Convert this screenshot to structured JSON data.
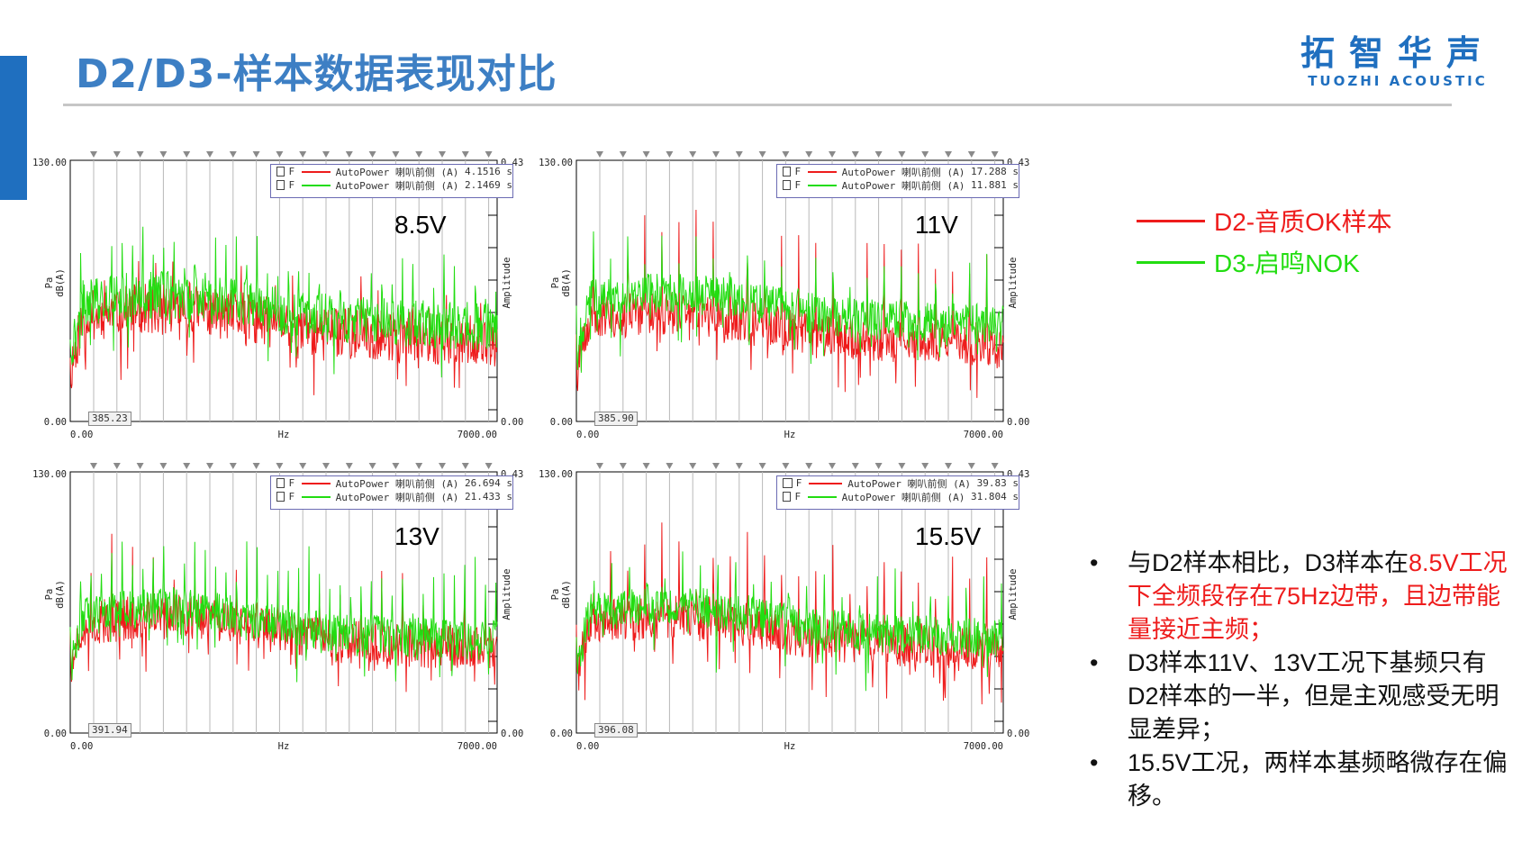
{
  "header": {
    "title": "D2/D3-样本数据表现对比",
    "logo_main": "拓智华声",
    "logo_sub": "TUOZHI ACOUSTIC"
  },
  "colors": {
    "accent": "#1f6fbf",
    "title": "#3d7fc4",
    "d2": "#ee1c1c",
    "d3": "#22dd11"
  },
  "legend": {
    "d2": "D2-音质OK样本",
    "d3": "D3-启鸣NOK"
  },
  "chart_data": [
    {
      "type": "line",
      "voltage_label": "8.5V",
      "xlim": [
        0,
        7000
      ],
      "ylim": [
        0,
        130
      ],
      "x_ticks": [
        "0.00",
        "7000.00"
      ],
      "xlabel": "Hz",
      "y_ticks": [
        "0.00",
        "130.00"
      ],
      "ylabel_left": [
        "Pa",
        "dB(A)"
      ],
      "ylabel_right": "Amplitude",
      "right_ticks": [
        "0.43",
        "0.00"
      ],
      "cursor_value": "385.23",
      "series": [
        {
          "name": "AutoPower 喇叭前侧 (A)",
          "time": "4.1516 s",
          "flag": "F",
          "color": "#ee1c1c"
        },
        {
          "name": "AutoPower 喇叭前侧 (A)",
          "time": "2.1469 s",
          "flag": "F",
          "color": "#22dd11"
        }
      ]
    },
    {
      "type": "line",
      "voltage_label": "11V",
      "xlim": [
        0,
        7000
      ],
      "ylim": [
        0,
        130
      ],
      "x_ticks": [
        "0.00",
        "7000.00"
      ],
      "xlabel": "Hz",
      "y_ticks": [
        "0.00",
        "130.00"
      ],
      "ylabel_left": [
        "Pa",
        "dB(A)"
      ],
      "ylabel_right": "Amplitude",
      "right_ticks": [
        "0.43",
        "0.00"
      ],
      "cursor_value": "385.90",
      "series": [
        {
          "name": "AutoPower 喇叭前侧 (A)",
          "time": "17.288 s",
          "flag": "F",
          "color": "#ee1c1c"
        },
        {
          "name": "AutoPower 喇叭前侧 (A)",
          "time": "11.881 s",
          "flag": "F",
          "color": "#22dd11"
        }
      ]
    },
    {
      "type": "line",
      "voltage_label": "13V",
      "xlim": [
        0,
        7000
      ],
      "ylim": [
        0,
        130
      ],
      "x_ticks": [
        "0.00",
        "7000.00"
      ],
      "xlabel": "Hz",
      "y_ticks": [
        "0.00",
        "130.00"
      ],
      "ylabel_left": [
        "Pa",
        "dB(A)"
      ],
      "ylabel_right": "Amplitude",
      "right_ticks": [
        "0.43",
        "0.00"
      ],
      "cursor_value": "391.94",
      "series": [
        {
          "name": "AutoPower 喇叭前侧 (A)",
          "time": "26.694 s",
          "flag": "F",
          "color": "#ee1c1c"
        },
        {
          "name": "AutoPower 喇叭前侧 (A)",
          "time": "21.433 s",
          "flag": "F",
          "color": "#22dd11"
        }
      ]
    },
    {
      "type": "line",
      "voltage_label": "15.5V",
      "xlim": [
        0,
        7000
      ],
      "ylim": [
        0,
        130
      ],
      "x_ticks": [
        "0.00",
        "7000.00"
      ],
      "xlabel": "Hz",
      "y_ticks": [
        "0.00",
        "130.00"
      ],
      "ylabel_left": [
        "Pa",
        "dB(A)"
      ],
      "ylabel_right": "Amplitude",
      "right_ticks": [
        "0.43",
        "0.00"
      ],
      "cursor_value": "396.08",
      "series": [
        {
          "name": "AutoPower 喇叭前侧 (A)",
          "time": "39.83 s",
          "flag": "F",
          "color": "#ee1c1c"
        },
        {
          "name": "AutoPower 喇叭前侧 (A)",
          "time": "31.804 s",
          "flag": "F",
          "color": "#22dd11"
        }
      ]
    }
  ],
  "notes": [
    {
      "parts": [
        {
          "text": "与D2样本相比，D3样本在",
          "red": false
        },
        {
          "text": "8.5V工况下全频段存在75Hz边带，且边带能量接近主频；",
          "red": true
        }
      ]
    },
    {
      "parts": [
        {
          "text": "D3样本11V、13V工况下基频只有D2样本的一半，但是主观感受无明显差异；",
          "red": false
        }
      ]
    },
    {
      "parts": [
        {
          "text": "15.5V工况，两样本基频略微存在偏移。",
          "red": false
        }
      ]
    }
  ]
}
